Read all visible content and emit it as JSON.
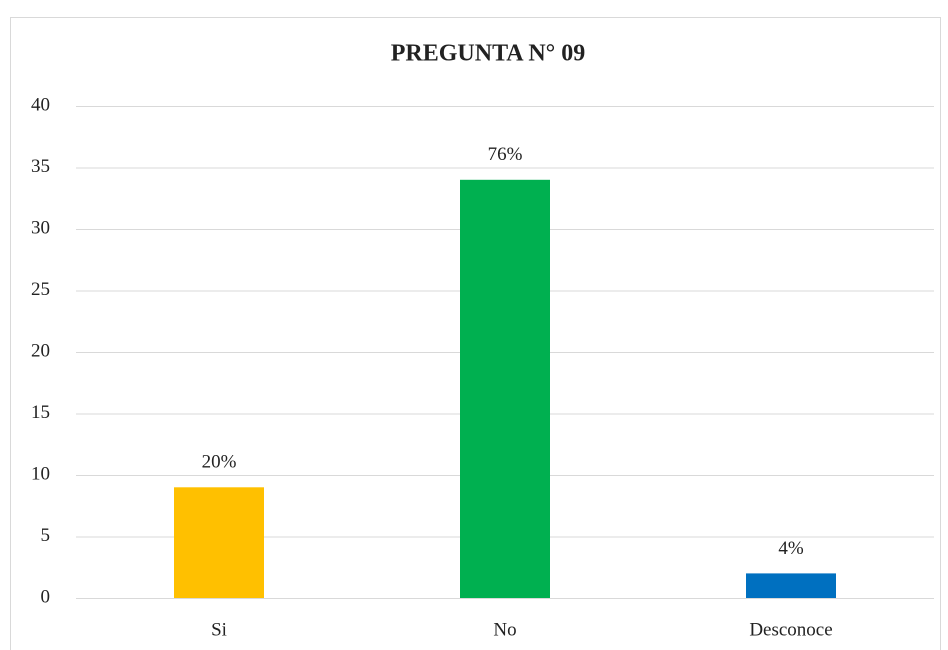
{
  "chart_data": {
    "type": "bar",
    "title": "PREGUNTA N° 09",
    "categories": [
      "Si",
      "No",
      "Desconoce"
    ],
    "values": [
      9,
      34,
      2
    ],
    "colors": [
      "#ffc000",
      "#00b050",
      "#0070c0"
    ],
    "annotations": [
      "20%",
      "76%",
      "4%"
    ],
    "ylim": [
      0,
      40
    ],
    "yticks": [
      0,
      5,
      10,
      15,
      20,
      25,
      30,
      35,
      40
    ],
    "grid": true
  }
}
